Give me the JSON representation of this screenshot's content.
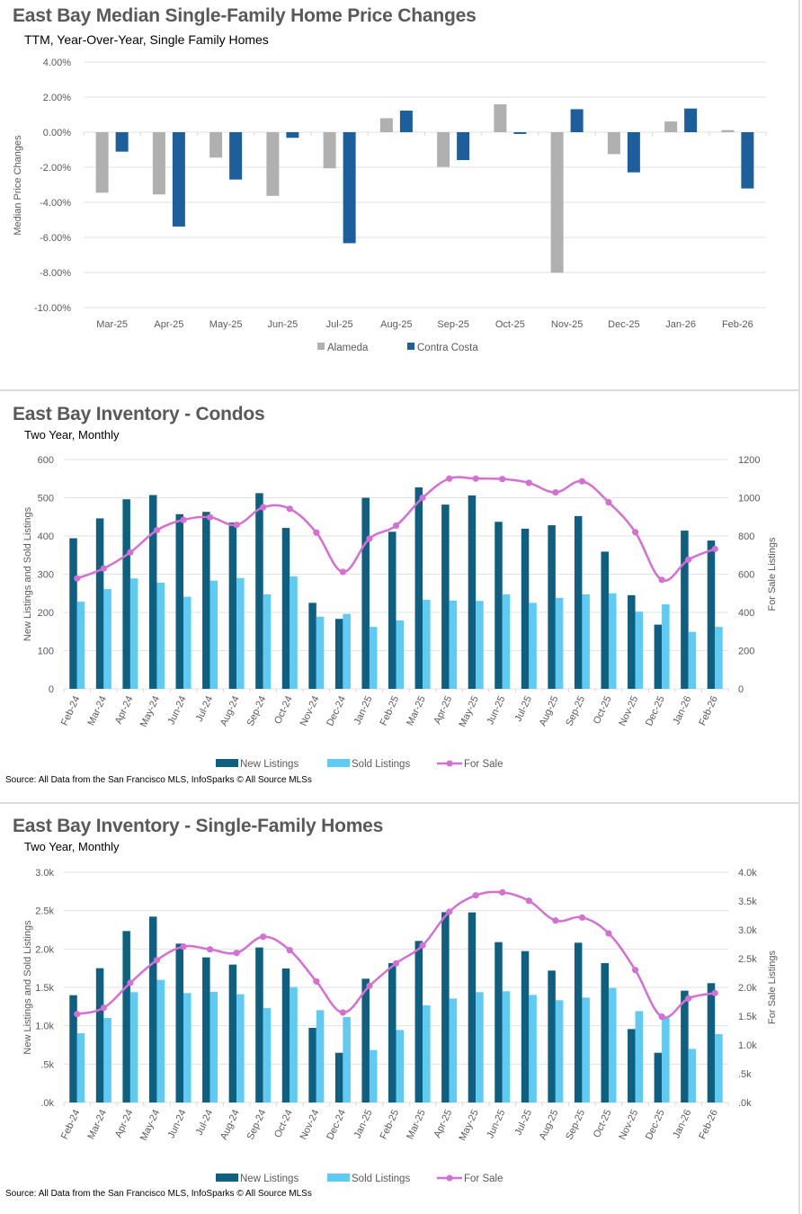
{
  "panels": {
    "price": {
      "title": "East Bay Median Single-Family Home Price Changes",
      "subtitle": "TTM, Year-Over-Year, Single Family Homes"
    },
    "condos": {
      "title": "East Bay Inventory - Condos",
      "subtitle": "Two Year, Monthly",
      "source": "Source: All Data from the San Francisco MLS, InfoSparks © All Source MLSs"
    },
    "sfh": {
      "title": "East Bay Inventory - Single-Family Homes",
      "subtitle": "Two Year, Monthly",
      "source": "Source: All Data from the San Francisco MLS, InfoSparks © All Source MLSs"
    }
  },
  "colors": {
    "alameda": "#b0b0b0",
    "contra_costa": "#1c5f9c",
    "new_listings": "#0e5f80",
    "sold_listings": "#5fcaf2",
    "for_sale": "#d46fd4"
  },
  "chart_data": [
    {
      "id": "price",
      "type": "bar",
      "title": "East Bay Median Single-Family Home Price Changes",
      "subtitle": "TTM, Year-Over-Year, Single Family Homes",
      "xlabel": "",
      "ylabel": "Median Price Changes",
      "ylim": [
        -10,
        4
      ],
      "yticks": [
        4,
        2,
        0,
        -2,
        -4,
        -6,
        -8,
        -10
      ],
      "ytick_labels": [
        "4.00%",
        "2.00%",
        "0.00%",
        "-2.00%",
        "-4.00%",
        "-6.00%",
        "-8.00%",
        "-10.00%"
      ],
      "grid": true,
      "legend": "bottom-center",
      "categories": [
        "Mar-25",
        "Apr-25",
        "May-25",
        "Jun-25",
        "Jul-25",
        "Aug-25",
        "Sep-25",
        "Oct-25",
        "Nov-25",
        "Dec-25",
        "Jan-26",
        "Feb-26"
      ],
      "series": [
        {
          "name": "Alameda",
          "values": [
            -3.45,
            -3.55,
            -1.45,
            -3.63,
            -2.06,
            0.8,
            -1.98,
            1.59,
            -8.02,
            -1.25,
            0.61,
            0.12
          ]
        },
        {
          "name": "Contra Costa",
          "values": [
            -1.11,
            -5.38,
            -2.7,
            -0.32,
            -6.33,
            1.23,
            -1.59,
            -0.1,
            1.31,
            -2.29,
            1.35,
            -3.21
          ]
        }
      ]
    },
    {
      "id": "condos",
      "type": "bar",
      "title": "East Bay Inventory - Condos",
      "subtitle": "Two Year, Monthly",
      "ylabel": "New Listings and Sold Listings",
      "y2label": "For Sale Listings",
      "ylim": [
        0,
        600
      ],
      "y2lim": [
        0,
        1200
      ],
      "yticks": [
        0,
        100,
        200,
        300,
        400,
        500,
        600
      ],
      "ytick_labels": [
        "0",
        "100",
        "200",
        "300",
        "400",
        "500",
        "600"
      ],
      "y2ticks": [
        0,
        200,
        400,
        600,
        800,
        1000,
        1200
      ],
      "y2tick_labels": [
        "0",
        "200",
        "400",
        "600",
        "800",
        "1000",
        "1200"
      ],
      "grid": true,
      "legend": "bottom-center",
      "categories": [
        "Feb-24",
        "Mar-24",
        "Apr-24",
        "May-24",
        "Jun-24",
        "Jul-24",
        "Aug-24",
        "Sep-24",
        "Oct-24",
        "Nov-24",
        "Dec-24",
        "Jan-25",
        "Feb-25",
        "Mar-25",
        "Apr-25",
        "May-25",
        "Jun-25",
        "Jul-25",
        "Aug-25",
        "Sep-25",
        "Oct-25",
        "Nov-25",
        "Dec-25",
        "Jan-26",
        "Feb-26"
      ],
      "series": [
        {
          "name": "New Listings",
          "kind": "bar",
          "axis": "left",
          "values": [
            394,
            446,
            496,
            507,
            457,
            463,
            435,
            512,
            421,
            225,
            183,
            500,
            411,
            527,
            482,
            506,
            437,
            419,
            428,
            452,
            359,
            245,
            168,
            414,
            388
          ]
        },
        {
          "name": "Sold Listings",
          "kind": "bar",
          "axis": "left",
          "values": [
            228,
            261,
            289,
            278,
            241,
            283,
            290,
            247,
            294,
            189,
            196,
            162,
            179,
            233,
            231,
            230,
            247,
            225,
            238,
            247,
            250,
            202,
            221,
            149,
            162
          ]
        },
        {
          "name": "For Sale",
          "kind": "line",
          "axis": "right",
          "values": [
            578,
            630,
            714,
            830,
            884,
            898,
            858,
            950,
            942,
            818,
            612,
            786,
            854,
            1000,
            1100,
            1100,
            1098,
            1078,
            1028,
            1086,
            976,
            820,
            570,
            676,
            732
          ]
        }
      ]
    },
    {
      "id": "sfh",
      "type": "bar",
      "title": "East Bay Inventory - Single-Family Homes",
      "subtitle": "Two Year, Monthly",
      "ylabel": "New Listings and Sold Listings",
      "y2label": "For Sale Listings",
      "ylim": [
        0,
        3000
      ],
      "y2lim": [
        0,
        4000
      ],
      "yticks": [
        0,
        500,
        1000,
        1500,
        2000,
        2500,
        3000
      ],
      "ytick_labels": [
        ".0k",
        ".5k",
        "1.0k",
        "1.5k",
        "2.0k",
        "2.5k",
        "3.0k"
      ],
      "y2ticks": [
        0,
        500,
        1000,
        1500,
        2000,
        2500,
        3000,
        3500,
        4000
      ],
      "y2tick_labels": [
        ".0k",
        ".5k",
        "1.0k",
        "1.5k",
        "2.0k",
        "2.5k",
        "3.0k",
        "3.5k",
        "4.0k"
      ],
      "grid": true,
      "legend": "bottom-center",
      "categories": [
        "Feb-24",
        "Mar-24",
        "Apr-24",
        "May-24",
        "Jun-24",
        "Jul-24",
        "Aug-24",
        "Sep-24",
        "Oct-24",
        "Nov-24",
        "Dec-24",
        "Jan-25",
        "Feb-25",
        "Mar-25",
        "Apr-25",
        "May-25",
        "Jun-25",
        "Jul-25",
        "Aug-25",
        "Sep-25",
        "Oct-25",
        "Nov-25",
        "Dec-25",
        "Jan-26",
        "Feb-26"
      ],
      "series": [
        {
          "name": "New Listings",
          "kind": "bar",
          "axis": "left",
          "values": [
            1398,
            1750,
            2234,
            2422,
            2070,
            1891,
            1797,
            2020,
            1746,
            973,
            648,
            1613,
            1816,
            2105,
            2480,
            2477,
            2090,
            1973,
            1719,
            2082,
            1816,
            957,
            648,
            1457,
            1555
          ]
        },
        {
          "name": "Sold Listings",
          "kind": "bar",
          "axis": "left",
          "values": [
            902,
            1102,
            1438,
            1598,
            1426,
            1441,
            1410,
            1230,
            1504,
            1203,
            1113,
            684,
            945,
            1266,
            1355,
            1438,
            1449,
            1402,
            1332,
            1367,
            1492,
            1191,
            1102,
            699,
            891
          ]
        },
        {
          "name": "For Sale",
          "kind": "line",
          "axis": "right",
          "values": [
            1536,
            1646,
            2078,
            2474,
            2708,
            2661,
            2599,
            2880,
            2646,
            2104,
            1563,
            2026,
            2417,
            2729,
            3313,
            3599,
            3651,
            3505,
            3161,
            3214,
            2938,
            2302,
            1490,
            1807,
            1901
          ]
        }
      ]
    }
  ]
}
